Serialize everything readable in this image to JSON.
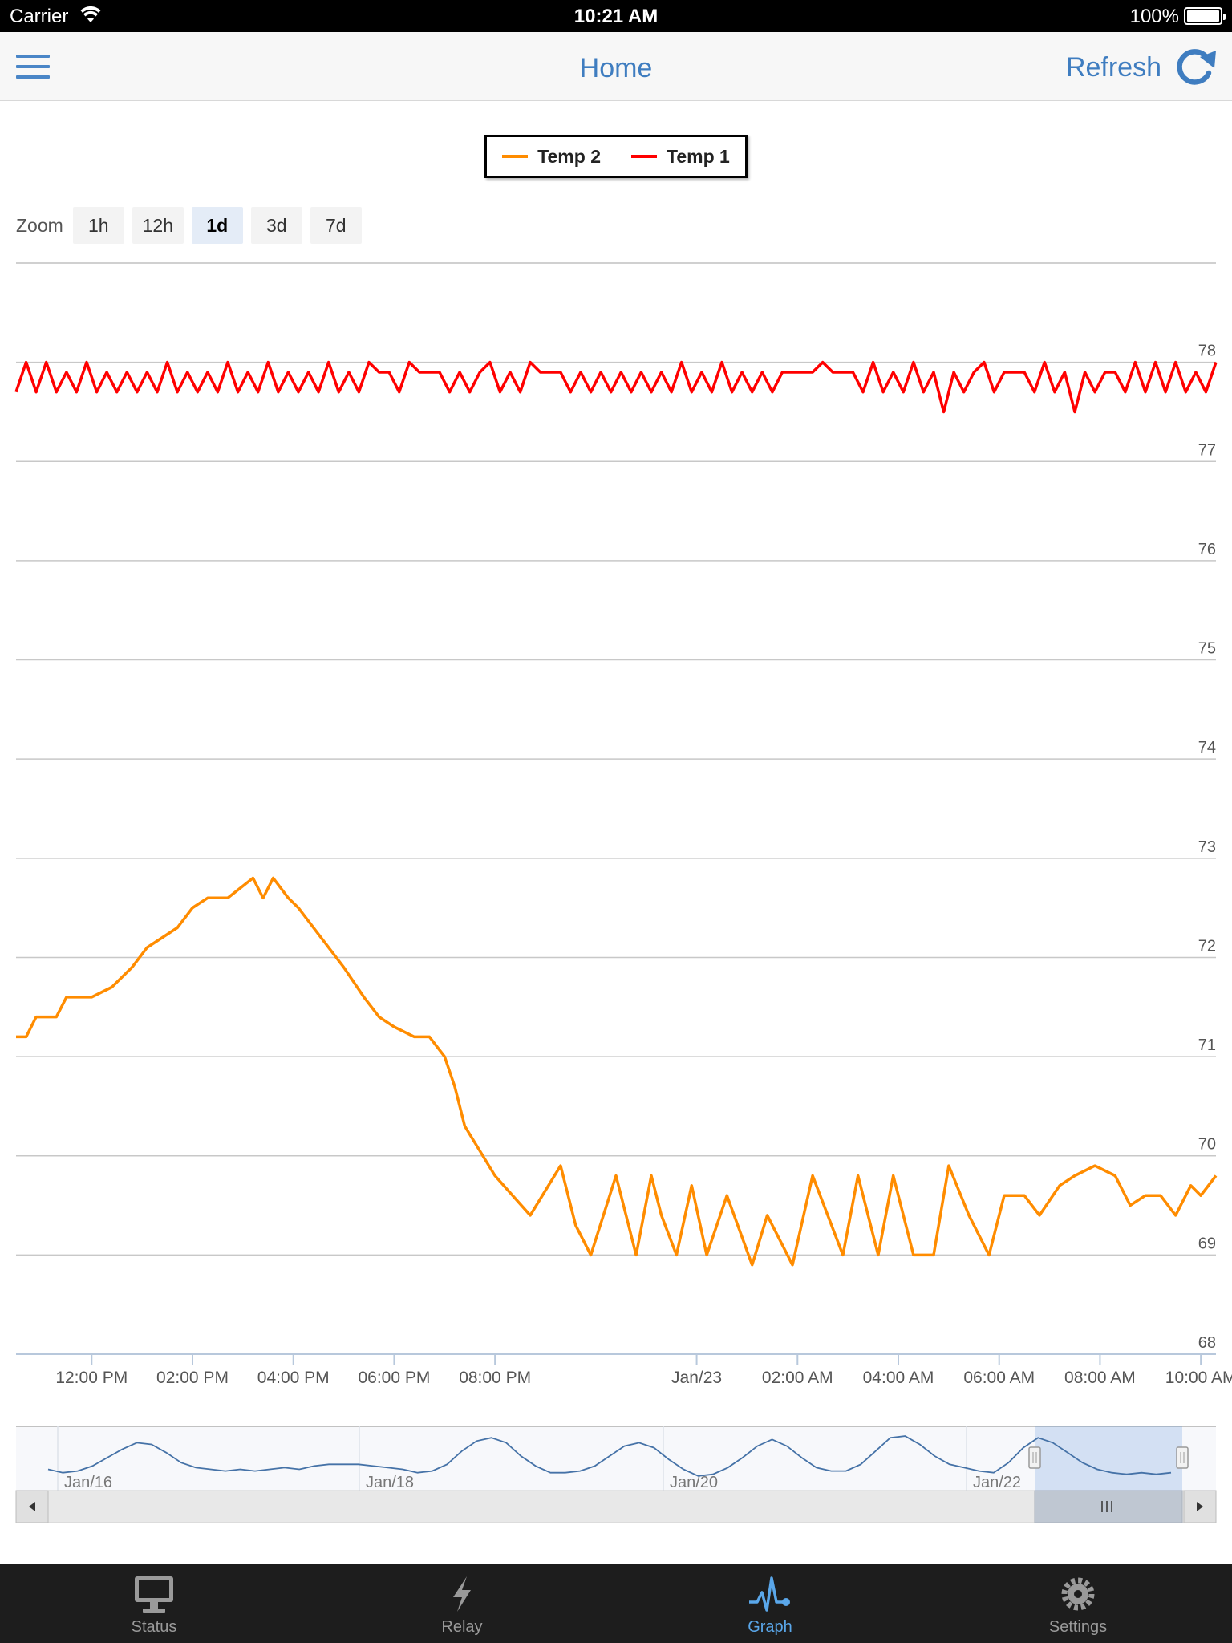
{
  "status_bar": {
    "carrier": "Carrier",
    "time": "10:21 AM",
    "battery": "100%"
  },
  "nav": {
    "title": "Home",
    "refresh_label": "Refresh"
  },
  "zoom": {
    "label": "Zoom",
    "buttons": [
      "1h",
      "12h",
      "1d",
      "3d",
      "7d"
    ],
    "active": "1d"
  },
  "legend": [
    {
      "name": "Temp 2",
      "color": "#ff8c00"
    },
    {
      "name": "Temp 1",
      "color": "#ff0000"
    }
  ],
  "tabs": [
    {
      "label": "Status",
      "icon": "monitor-icon"
    },
    {
      "label": "Relay",
      "icon": "bolt-icon"
    },
    {
      "label": "Graph",
      "icon": "graph-pulse-icon",
      "active": true
    },
    {
      "label": "Settings",
      "icon": "gear-icon"
    }
  ],
  "chart_data": {
    "type": "line",
    "ylim": [
      68,
      79
    ],
    "y_ticks": [
      68,
      69,
      70,
      71,
      72,
      73,
      74,
      75,
      76,
      77,
      78
    ],
    "xlim_hours": [
      10.5,
      34.3
    ],
    "x_ticks": [
      {
        "hour": 12,
        "label": "12:00 PM"
      },
      {
        "hour": 14,
        "label": "02:00 PM"
      },
      {
        "hour": 16,
        "label": "04:00 PM"
      },
      {
        "hour": 18,
        "label": "06:00 PM"
      },
      {
        "hour": 20,
        "label": "08:00 PM"
      },
      {
        "hour": 24,
        "label": "Jan/23"
      },
      {
        "hour": 26,
        "label": "02:00 AM"
      },
      {
        "hour": 28,
        "label": "04:00 AM"
      },
      {
        "hour": 30,
        "label": "06:00 AM"
      },
      {
        "hour": 32,
        "label": "08:00 AM"
      },
      {
        "hour": 34,
        "label": "10:00 AM"
      }
    ],
    "grid": true,
    "legend_position": "top-center",
    "series": [
      {
        "name": "Temp 1",
        "color": "#ff0000",
        "x": [
          10.5,
          10.7,
          10.9,
          11.1,
          11.3,
          11.5,
          11.7,
          11.9,
          12.1,
          12.3,
          12.5,
          12.7,
          12.9,
          13.1,
          13.3,
          13.5,
          13.7,
          13.9,
          14.1,
          14.3,
          14.5,
          14.7,
          14.9,
          15.1,
          15.3,
          15.5,
          15.7,
          15.9,
          16.1,
          16.3,
          16.5,
          16.7,
          16.9,
          17.1,
          17.3,
          17.5,
          17.7,
          17.9,
          18.1,
          18.3,
          18.5,
          18.7,
          18.9,
          19.1,
          19.3,
          19.5,
          19.7,
          19.9,
          20.1,
          20.3,
          20.5,
          20.7,
          20.9,
          21.1,
          21.3,
          21.5,
          21.7,
          21.9,
          22.1,
          22.3,
          22.5,
          22.7,
          22.9,
          23.1,
          23.3,
          23.5,
          23.7,
          23.9,
          24.1,
          24.3,
          24.5,
          24.7,
          24.9,
          25.1,
          25.3,
          25.5,
          25.7,
          25.9,
          26.1,
          26.3,
          26.5,
          26.7,
          26.9,
          27.1,
          27.3,
          27.5,
          27.7,
          27.9,
          28.1,
          28.3,
          28.5,
          28.7,
          28.9,
          29.1,
          29.3,
          29.5,
          29.7,
          29.9,
          30.1,
          30.3,
          30.5,
          30.7,
          30.9,
          31.1,
          31.3,
          31.5,
          31.7,
          31.9,
          32.1,
          32.3,
          32.5,
          32.7,
          32.9,
          33.1,
          33.3,
          33.5,
          33.7,
          33.9,
          34.1,
          34.3
        ],
        "y": [
          77.7,
          78.0,
          77.7,
          78.0,
          77.7,
          77.9,
          77.7,
          78.0,
          77.7,
          77.9,
          77.7,
          77.9,
          77.7,
          77.9,
          77.7,
          78.0,
          77.7,
          77.9,
          77.7,
          77.9,
          77.7,
          78.0,
          77.7,
          77.9,
          77.7,
          78.0,
          77.7,
          77.9,
          77.7,
          77.9,
          77.7,
          78.0,
          77.7,
          77.9,
          77.7,
          78.0,
          77.9,
          77.9,
          77.7,
          78.0,
          77.9,
          77.9,
          77.9,
          77.7,
          77.9,
          77.7,
          77.9,
          78.0,
          77.7,
          77.9,
          77.7,
          78.0,
          77.9,
          77.9,
          77.9,
          77.7,
          77.9,
          77.7,
          77.9,
          77.7,
          77.9,
          77.7,
          77.9,
          77.7,
          77.9,
          77.7,
          78.0,
          77.7,
          77.9,
          77.7,
          78.0,
          77.7,
          77.9,
          77.7,
          77.9,
          77.7,
          77.9,
          77.9,
          77.9,
          77.9,
          78.0,
          77.9,
          77.9,
          77.9,
          77.7,
          78.0,
          77.7,
          77.9,
          77.7,
          78.0,
          77.7,
          77.9,
          77.5,
          77.9,
          77.7,
          77.9,
          78.0,
          77.7,
          77.9,
          77.9,
          77.9,
          77.7,
          78.0,
          77.7,
          77.9,
          77.5,
          77.9,
          77.7,
          77.9,
          77.9,
          77.7,
          78.0,
          77.7,
          78.0,
          77.7,
          78.0,
          77.7,
          77.9,
          77.7,
          78.0
        ]
      },
      {
        "name": "Temp 2",
        "color": "#ff8c00",
        "x": [
          10.5,
          10.7,
          10.9,
          11.3,
          11.5,
          12.0,
          12.4,
          12.8,
          13.1,
          13.7,
          14.0,
          14.3,
          14.7,
          15.2,
          15.4,
          15.6,
          15.9,
          16.1,
          16.4,
          16.7,
          17.0,
          17.4,
          17.7,
          18.0,
          18.4,
          18.7,
          19.0,
          19.2,
          19.4,
          20.0,
          20.7,
          21.3,
          21.6,
          21.9,
          22.4,
          22.8,
          23.1,
          23.3,
          23.6,
          23.9,
          24.2,
          24.6,
          25.1,
          25.4,
          25.9,
          26.3,
          26.6,
          26.9,
          27.2,
          27.6,
          27.9,
          28.3,
          28.7,
          29.0,
          29.4,
          29.8,
          30.1,
          30.5,
          30.8,
          31.2,
          31.5,
          31.9,
          32.3,
          32.6,
          32.9,
          33.2,
          33.5,
          33.8,
          34.0,
          34.3
        ],
        "y": [
          71.2,
          71.2,
          71.4,
          71.4,
          71.6,
          71.6,
          71.7,
          71.9,
          72.1,
          72.3,
          72.5,
          72.6,
          72.6,
          72.8,
          72.6,
          72.8,
          72.6,
          72.5,
          72.3,
          72.1,
          71.9,
          71.6,
          71.4,
          71.3,
          71.2,
          71.2,
          71.0,
          70.7,
          70.3,
          69.8,
          69.4,
          69.9,
          69.3,
          69.0,
          69.8,
          69.0,
          69.8,
          69.4,
          69.0,
          69.7,
          69.0,
          69.6,
          68.9,
          69.4,
          68.9,
          69.8,
          69.4,
          69.0,
          69.8,
          69.0,
          69.8,
          69.0,
          69.0,
          69.9,
          69.4,
          69.0,
          69.6,
          69.6,
          69.4,
          69.7,
          69.8,
          69.9,
          69.8,
          69.5,
          69.6,
          69.6,
          69.4,
          69.7,
          69.6,
          69.8
        ]
      }
    ],
    "navigator": {
      "labels": [
        "Jan/16",
        "Jan/18",
        "Jan/20",
        "Jan/22"
      ],
      "series_color": "#4572a7",
      "values": [
        71.2,
        71.0,
        71.1,
        71.4,
        71.9,
        72.4,
        72.8,
        72.7,
        72.2,
        71.6,
        71.3,
        71.2,
        71.1,
        71.2,
        71.1,
        71.2,
        71.3,
        71.2,
        71.4,
        71.5,
        71.5,
        71.5,
        71.4,
        71.3,
        71.2,
        71.0,
        71.1,
        71.5,
        72.3,
        72.9,
        73.1,
        72.8,
        72.0,
        71.4,
        71.0,
        71.0,
        71.1,
        71.4,
        72.0,
        72.6,
        72.8,
        72.5,
        71.8,
        71.2,
        70.8,
        70.9,
        71.3,
        71.9,
        72.6,
        73.0,
        72.6,
        71.9,
        71.3,
        71.1,
        71.1,
        71.5,
        72.3,
        73.1,
        73.2,
        72.7,
        72.0,
        71.5,
        71.3,
        71.1,
        71.0,
        71.6,
        72.5,
        73.1,
        72.8,
        72.2,
        71.6,
        71.2,
        71.0,
        70.9,
        71.0,
        70.9,
        71.0
      ]
    }
  }
}
